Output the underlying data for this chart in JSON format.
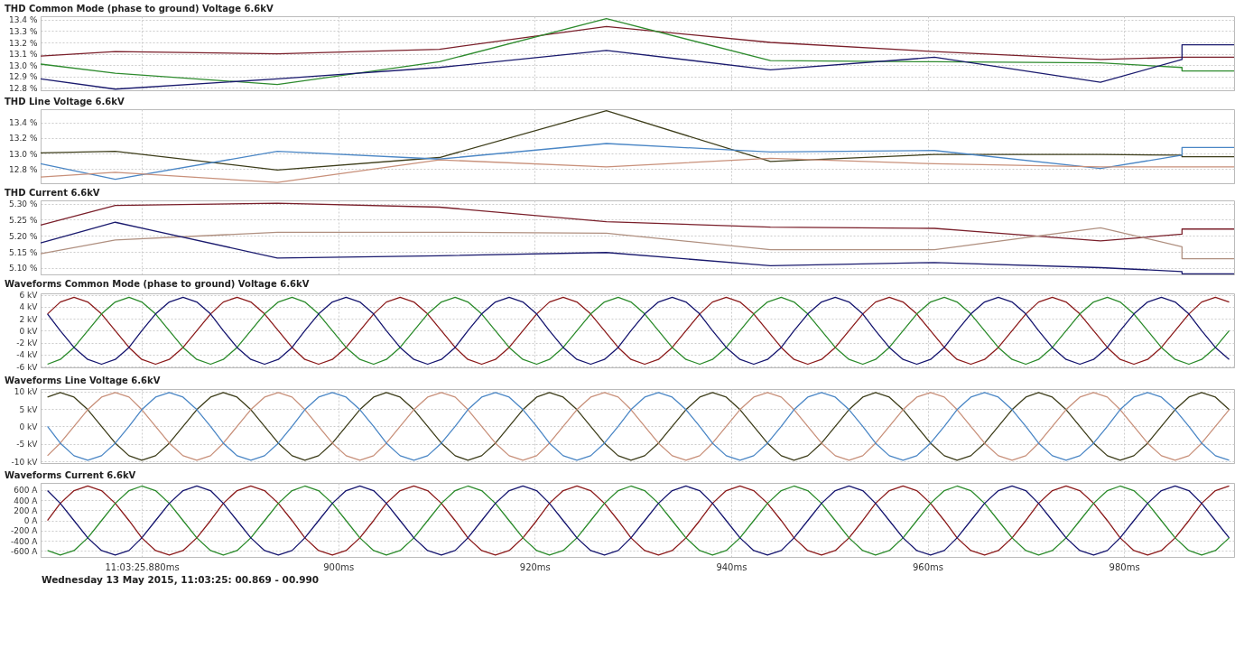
{
  "chart_data": [
    {
      "type": "line",
      "title": "THD Common Mode (phase to ground) Voltage 6.6kV",
      "x": [
        869.7,
        877.3,
        893.8,
        910.3,
        927.3,
        944.0,
        960.7,
        977.6,
        985.9,
        985.9,
        991.2
      ],
      "xlim": [
        869.7,
        991.2
      ],
      "xticks": [
        880,
        900,
        920,
        940,
        960,
        980
      ],
      "ylim": [
        12.78,
        13.43
      ],
      "yticks": [
        {
          "value": 12.8,
          "label": "12.8 %"
        },
        {
          "value": 12.9,
          "label": "12.9 %"
        },
        {
          "value": 13.0,
          "label": "13.0 %"
        },
        {
          "value": 13.1,
          "label": "13.1 %"
        },
        {
          "value": 13.2,
          "label": "13.2 %"
        },
        {
          "value": 13.3,
          "label": "13.3 %"
        },
        {
          "value": 13.4,
          "label": "13.4 %"
        }
      ],
      "grid": true,
      "tick_labels": "y",
      "series": [
        {
          "color": "#7a1f2a",
          "values": [
            13.08,
            13.12,
            13.1,
            13.14,
            13.34,
            13.2,
            13.12,
            13.05,
            13.07,
            13.07,
            13.07
          ]
        },
        {
          "color": "#2e8b2e",
          "values": [
            13.01,
            12.93,
            12.83,
            13.03,
            13.41,
            13.04,
            13.03,
            13.02,
            12.98,
            12.95,
            12.95
          ]
        },
        {
          "color": "#1a1a6e",
          "values": [
            12.88,
            12.79,
            12.88,
            12.98,
            13.13,
            12.96,
            13.07,
            12.85,
            13.05,
            13.18,
            13.18
          ]
        }
      ]
    },
    {
      "type": "line",
      "title": "THD Line Voltage 6.6kV",
      "x": [
        869.7,
        877.3,
        893.8,
        910.3,
        927.3,
        944.0,
        960.7,
        977.6,
        985.9,
        985.9,
        991.2
      ],
      "xlim": [
        869.7,
        991.2
      ],
      "xticks": [
        880,
        900,
        920,
        940,
        960,
        980
      ],
      "ylim": [
        12.62,
        13.57
      ],
      "yticks": [
        {
          "value": 12.8,
          "label": "12.8 %"
        },
        {
          "value": 13.0,
          "label": "13.0 %"
        },
        {
          "value": 13.2,
          "label": "13.2 %"
        },
        {
          "value": 13.4,
          "label": "13.4 %"
        }
      ],
      "grid": true,
      "tick_labels": "y",
      "series": [
        {
          "color": "#3d3d1a",
          "values": [
            13.01,
            13.03,
            12.79,
            12.95,
            13.55,
            12.9,
            12.99,
            12.99,
            12.98,
            12.96,
            12.96
          ]
        },
        {
          "color": "#4a86c5",
          "values": [
            12.87,
            12.67,
            13.03,
            12.93,
            13.13,
            13.02,
            13.04,
            12.81,
            12.98,
            13.08,
            13.08
          ]
        },
        {
          "color": "#c8907a",
          "values": [
            12.7,
            12.76,
            12.63,
            12.92,
            12.83,
            12.94,
            12.87,
            12.83,
            12.83,
            12.83,
            12.83
          ]
        }
      ]
    },
    {
      "type": "line",
      "title": "THD Current 6.6kV",
      "x": [
        869.7,
        877.3,
        893.8,
        910.3,
        927.3,
        944.0,
        960.7,
        977.6,
        985.9,
        985.9,
        991.2
      ],
      "xlim": [
        869.7,
        991.2
      ],
      "xticks": [
        880,
        900,
        920,
        940,
        960,
        980
      ],
      "ylim": [
        5.08,
        5.31
      ],
      "yticks": [
        {
          "value": 5.1,
          "label": "5.10 %"
        },
        {
          "value": 5.15,
          "label": "5.15 %"
        },
        {
          "value": 5.2,
          "label": "5.20 %"
        },
        {
          "value": 5.25,
          "label": "5.25 %"
        },
        {
          "value": 5.3,
          "label": "5.30 %"
        }
      ],
      "grid": true,
      "tick_labels": "y",
      "series": [
        {
          "color": "#7a1f2a",
          "values": [
            5.233,
            5.294,
            5.301,
            5.289,
            5.244,
            5.227,
            5.223,
            5.184,
            5.205,
            5.221,
            5.221
          ]
        },
        {
          "color": "#b09080",
          "values": [
            5.144,
            5.187,
            5.211,
            5.211,
            5.208,
            5.157,
            5.157,
            5.225,
            5.166,
            5.129,
            5.129
          ]
        },
        {
          "color": "#1a1a6e",
          "values": [
            5.178,
            5.242,
            5.131,
            5.138,
            5.148,
            5.107,
            5.117,
            5.101,
            5.089,
            5.082,
            5.082
          ]
        }
      ]
    },
    {
      "type": "line",
      "title": "Waveforms Common Mode (phase to ground) Voltage 6.6kV",
      "x": [
        870.4,
        871.7,
        873.1,
        874.5,
        875.9,
        877.3,
        878.7,
        880.0,
        881.4,
        882.8,
        884.2,
        885.6,
        887.0,
        888.3,
        889.7,
        891.1,
        892.5,
        893.9,
        895.3,
        896.6,
        898.0,
        899.4,
        900.8,
        902.2,
        903.6,
        904.9,
        906.3,
        907.7,
        909.1,
        910.5,
        911.9,
        913.2,
        914.6,
        916.0,
        917.4,
        918.8,
        920.2,
        921.5,
        922.9,
        924.3,
        925.7,
        927.1,
        928.5,
        929.8,
        931.2,
        932.6,
        934.0,
        935.4,
        936.8,
        938.1,
        939.5,
        940.9,
        942.3,
        943.7,
        945.1,
        946.4,
        947.8,
        949.2,
        950.6,
        952.0,
        953.4,
        954.7,
        956.1,
        957.5,
        958.9,
        960.3,
        961.7,
        963.0,
        964.4,
        965.8,
        967.2,
        968.6,
        970.0,
        971.3,
        972.7,
        974.1,
        975.5,
        976.9,
        978.3,
        979.6,
        981.0,
        982.4,
        983.8,
        985.2,
        986.6,
        987.9,
        989.3,
        990.7
      ],
      "xlim": [
        869.7,
        991.2
      ],
      "xticks": [
        880,
        900,
        920,
        940,
        960,
        980
      ],
      "ylim": [
        -6.13,
        6.25
      ],
      "yticks": [
        {
          "value": -6,
          "label": "-6 kV"
        },
        {
          "value": -4,
          "label": "-4 kV"
        },
        {
          "value": -2,
          "label": "-2 kV"
        },
        {
          "value": 0,
          "label": "0 kV"
        },
        {
          "value": 2,
          "label": "2 kV"
        },
        {
          "value": 4,
          "label": "4 kV"
        },
        {
          "value": 6,
          "label": "6 kV"
        }
      ],
      "grid": true,
      "tick_labels": "y",
      "series": [
        {
          "color": "#8b1a1a",
          "values": [
            2.8,
            4.8,
            5.6,
            4.8,
            2.8,
            0,
            -2.8,
            -4.8,
            -5.6,
            -4.8,
            -2.8,
            0,
            2.8,
            4.8,
            5.6,
            4.8,
            2.8,
            0,
            -2.8,
            -4.8,
            -5.6,
            -4.8,
            -2.8,
            0,
            2.8,
            4.8,
            5.6,
            4.8,
            2.8,
            0,
            -2.8,
            -4.8,
            -5.6,
            -4.8,
            -2.8,
            0,
            2.8,
            4.8,
            5.6,
            4.8,
            2.8,
            0,
            -2.8,
            -4.8,
            -5.6,
            -4.8,
            -2.8,
            0,
            2.8,
            4.8,
            5.6,
            4.8,
            2.8,
            0,
            -2.8,
            -4.8,
            -5.6,
            -4.8,
            -2.8,
            0,
            2.8,
            4.8,
            5.6,
            4.8,
            2.8,
            0,
            -2.8,
            -4.8,
            -5.6,
            -4.8,
            -2.8,
            0,
            2.8,
            4.8,
            5.6,
            4.8,
            2.8,
            0,
            -2.8,
            -4.8,
            -5.6,
            -4.8,
            -2.8,
            0,
            2.8,
            4.8,
            5.6,
            4.8
          ]
        },
        {
          "color": "#2a8a2a",
          "values": [
            -5.6,
            -4.8,
            -2.8,
            0,
            2.8,
            4.8,
            5.6,
            4.8,
            2.8,
            0,
            -2.8,
            -4.8,
            -5.6,
            -4.8,
            -2.8,
            0,
            2.8,
            4.8,
            5.6,
            4.8,
            2.8,
            0,
            -2.8,
            -4.8,
            -5.6,
            -4.8,
            -2.8,
            0,
            2.8,
            4.8,
            5.6,
            4.8,
            2.8,
            0,
            -2.8,
            -4.8,
            -5.6,
            -4.8,
            -2.8,
            0,
            2.8,
            4.8,
            5.6,
            4.8,
            2.8,
            0,
            -2.8,
            -4.8,
            -5.6,
            -4.8,
            -2.8,
            0,
            2.8,
            4.8,
            5.6,
            4.8,
            2.8,
            0,
            -2.8,
            -4.8,
            -5.6,
            -4.8,
            -2.8,
            0,
            2.8,
            4.8,
            5.6,
            4.8,
            2.8,
            0,
            -2.8,
            -4.8,
            -5.6,
            -4.8,
            -2.8,
            0,
            2.8,
            4.8,
            5.6,
            4.8,
            2.8,
            0,
            -2.8,
            -4.8,
            -5.6,
            -4.8,
            -2.8,
            0
          ]
        },
        {
          "color": "#14146e",
          "values": [
            2.8,
            0,
            -2.8,
            -4.8,
            -5.6,
            -4.8,
            -2.8,
            0,
            2.8,
            4.8,
            5.6,
            4.8,
            2.8,
            0,
            -2.8,
            -4.8,
            -5.6,
            -4.8,
            -2.8,
            0,
            2.8,
            4.8,
            5.6,
            4.8,
            2.8,
            0,
            -2.8,
            -4.8,
            -5.6,
            -4.8,
            -2.8,
            0,
            2.8,
            4.8,
            5.6,
            4.8,
            2.8,
            0,
            -2.8,
            -4.8,
            -5.6,
            -4.8,
            -2.8,
            0,
            2.8,
            4.8,
            5.6,
            4.8,
            2.8,
            0,
            -2.8,
            -4.8,
            -5.6,
            -4.8,
            -2.8,
            0,
            2.8,
            4.8,
            5.6,
            4.8,
            2.8,
            0,
            -2.8,
            -4.8,
            -5.6,
            -4.8,
            -2.8,
            0,
            2.8,
            4.8,
            5.6,
            4.8,
            2.8,
            0,
            -2.8,
            -4.8,
            -5.6,
            -4.8,
            -2.8,
            0,
            2.8,
            4.8,
            5.6,
            4.8,
            2.8,
            0,
            -2.8,
            -4.8
          ]
        }
      ]
    },
    {
      "type": "line",
      "title": "Waveforms Line Voltage 6.6kV",
      "x": [
        870.4,
        871.7,
        873.1,
        874.5,
        875.9,
        877.3,
        878.7,
        880.0,
        881.4,
        882.8,
        884.2,
        885.6,
        887.0,
        888.3,
        889.7,
        891.1,
        892.5,
        893.9,
        895.3,
        896.6,
        898.0,
        899.4,
        900.8,
        902.2,
        903.6,
        904.9,
        906.3,
        907.7,
        909.1,
        910.5,
        911.9,
        913.2,
        914.6,
        916.0,
        917.4,
        918.8,
        920.2,
        921.5,
        922.9,
        924.3,
        925.7,
        927.1,
        928.5,
        929.8,
        931.2,
        932.6,
        934.0,
        935.4,
        936.8,
        938.1,
        939.5,
        940.9,
        942.3,
        943.7,
        945.1,
        946.4,
        947.8,
        949.2,
        950.6,
        952.0,
        953.4,
        954.7,
        956.1,
        957.5,
        958.9,
        960.3,
        961.7,
        963.0,
        964.4,
        965.8,
        967.2,
        968.6,
        970.0,
        971.3,
        972.7,
        974.1,
        975.5,
        976.9,
        978.3,
        979.6,
        981.0,
        982.4,
        983.8,
        985.2,
        986.6,
        987.9,
        989.3,
        990.7
      ],
      "xlim": [
        869.7,
        991.2
      ],
      "xticks": [
        880,
        900,
        920,
        940,
        960,
        980
      ],
      "ylim": [
        -10.5,
        10.7
      ],
      "yticks": [
        {
          "value": -10,
          "label": "-10 kV"
        },
        {
          "value": -5,
          "label": "-5 kV"
        },
        {
          "value": 0,
          "label": "0 kV"
        },
        {
          "value": 5,
          "label": "5 kV"
        },
        {
          "value": 10,
          "label": "10 kV"
        }
      ],
      "grid": true,
      "tick_labels": "y",
      "series": [
        {
          "color": "#3d3d1a",
          "values": [
            8.4,
            9.7,
            8.4,
            4.8,
            0,
            -4.8,
            -8.4,
            -9.7,
            -8.4,
            -4.8,
            0,
            4.8,
            8.4,
            9.7,
            8.4,
            4.8,
            0,
            -4.8,
            -8.4,
            -9.7,
            -8.4,
            -4.8,
            0,
            4.8,
            8.4,
            9.7,
            8.4,
            4.8,
            0,
            -4.8,
            -8.4,
            -9.7,
            -8.4,
            -4.8,
            0,
            4.8,
            8.4,
            9.7,
            8.4,
            4.8,
            0,
            -4.8,
            -8.4,
            -9.7,
            -8.4,
            -4.8,
            0,
            4.8,
            8.4,
            9.7,
            8.4,
            4.8,
            0,
            -4.8,
            -8.4,
            -9.7,
            -8.4,
            -4.8,
            0,
            4.8,
            8.4,
            9.7,
            8.4,
            4.8,
            0,
            -4.8,
            -8.4,
            -9.7,
            -8.4,
            -4.8,
            0,
            4.8,
            8.4,
            9.7,
            8.4,
            4.8,
            0,
            -4.8,
            -8.4,
            -9.7,
            -8.4,
            -4.8,
            0,
            4.8,
            8.4,
            9.7,
            8.4,
            4.8
          ]
        },
        {
          "color": "#c8907a",
          "values": [
            -8.4,
            -4.8,
            0,
            4.8,
            8.4,
            9.7,
            8.4,
            4.8,
            0,
            -4.8,
            -8.4,
            -9.7,
            -8.4,
            -4.8,
            0,
            4.8,
            8.4,
            9.7,
            8.4,
            4.8,
            0,
            -4.8,
            -8.4,
            -9.7,
            -8.4,
            -4.8,
            0,
            4.8,
            8.4,
            9.7,
            8.4,
            4.8,
            0,
            -4.8,
            -8.4,
            -9.7,
            -8.4,
            -4.8,
            0,
            4.8,
            8.4,
            9.7,
            8.4,
            4.8,
            0,
            -4.8,
            -8.4,
            -9.7,
            -8.4,
            -4.8,
            0,
            4.8,
            8.4,
            9.7,
            8.4,
            4.8,
            0,
            -4.8,
            -8.4,
            -9.7,
            -8.4,
            -4.8,
            0,
            4.8,
            8.4,
            9.7,
            8.4,
            4.8,
            0,
            -4.8,
            -8.4,
            -9.7,
            -8.4,
            -4.8,
            0,
            4.8,
            8.4,
            9.7,
            8.4,
            4.8,
            0,
            -4.8,
            -8.4,
            -9.7,
            -8.4,
            -4.8,
            0,
            4.8
          ]
        },
        {
          "color": "#4a86c5",
          "values": [
            0,
            -4.8,
            -8.4,
            -9.7,
            -8.4,
            -4.8,
            0,
            4.8,
            8.4,
            9.7,
            8.4,
            4.8,
            0,
            -4.8,
            -8.4,
            -9.7,
            -8.4,
            -4.8,
            0,
            4.8,
            8.4,
            9.7,
            8.4,
            4.8,
            0,
            -4.8,
            -8.4,
            -9.7,
            -8.4,
            -4.8,
            0,
            4.8,
            8.4,
            9.7,
            8.4,
            4.8,
            0,
            -4.8,
            -8.4,
            -9.7,
            -8.4,
            -4.8,
            0,
            4.8,
            8.4,
            9.7,
            8.4,
            4.8,
            0,
            -4.8,
            -8.4,
            -9.7,
            -8.4,
            -4.8,
            0,
            4.8,
            8.4,
            9.7,
            8.4,
            4.8,
            0,
            -4.8,
            -8.4,
            -9.7,
            -8.4,
            -4.8,
            0,
            4.8,
            8.4,
            9.7,
            8.4,
            4.8,
            0,
            -4.8,
            -8.4,
            -9.7,
            -8.4,
            -4.8,
            0,
            4.8,
            8.4,
            9.7,
            8.4,
            4.8,
            0,
            -4.8,
            -8.4,
            -9.7
          ]
        }
      ]
    },
    {
      "type": "line",
      "title": "Waveforms Current 6.6kV",
      "annotations": [
        "Wednesday 13 May 2015, 11:03:25: 00.869 - 00.990"
      ],
      "x": [
        870.4,
        871.7,
        873.1,
        874.5,
        875.9,
        877.3,
        878.7,
        880.0,
        881.4,
        882.8,
        884.2,
        885.6,
        887.0,
        888.3,
        889.7,
        891.1,
        892.5,
        893.9,
        895.3,
        896.6,
        898.0,
        899.4,
        900.8,
        902.2,
        903.6,
        904.9,
        906.3,
        907.7,
        909.1,
        910.5,
        911.9,
        913.2,
        914.6,
        916.0,
        917.4,
        918.8,
        920.2,
        921.5,
        922.9,
        924.3,
        925.7,
        927.1,
        928.5,
        929.8,
        931.2,
        932.6,
        934.0,
        935.4,
        936.8,
        938.1,
        939.5,
        940.9,
        942.3,
        943.7,
        945.1,
        946.4,
        947.8,
        949.2,
        950.6,
        952.0,
        953.4,
        954.7,
        956.1,
        957.5,
        958.9,
        960.3,
        961.7,
        963.0,
        964.4,
        965.8,
        967.2,
        968.6,
        970.0,
        971.3,
        972.7,
        974.1,
        975.5,
        976.9,
        978.3,
        979.6,
        981.0,
        982.4,
        983.8,
        985.2,
        986.6,
        987.9,
        989.3,
        990.7
      ],
      "xlim": [
        869.7,
        991.2
      ],
      "xticks": [
        {
          "value": 880,
          "label": "11:03:25.880ms"
        },
        {
          "value": 900,
          "label": "900ms"
        },
        {
          "value": 920,
          "label": "920ms"
        },
        {
          "value": 940,
          "label": "940ms"
        },
        {
          "value": 960,
          "label": "960ms"
        },
        {
          "value": 980,
          "label": "980ms"
        }
      ],
      "ylim": [
        -716,
        742
      ],
      "yticks": [
        {
          "value": -600,
          "label": "-600 A"
        },
        {
          "value": -400,
          "label": "-400 A"
        },
        {
          "value": -200,
          "label": "-200 A"
        },
        {
          "value": 0,
          "label": "0 A"
        },
        {
          "value": 200,
          "label": "200 A"
        },
        {
          "value": 400,
          "label": "400 A"
        },
        {
          "value": 600,
          "label": "600 A"
        }
      ],
      "grid": true,
      "series": [
        {
          "color": "#8b1a1a",
          "values": [
            0,
            340,
            590,
            680,
            590,
            340,
            0,
            -340,
            -590,
            -680,
            -590,
            -340,
            0,
            340,
            590,
            680,
            590,
            340,
            0,
            -340,
            -590,
            -680,
            -590,
            -340,
            0,
            340,
            590,
            680,
            590,
            340,
            0,
            -340,
            -590,
            -680,
            -590,
            -340,
            0,
            340,
            590,
            680,
            590,
            340,
            0,
            -340,
            -590,
            -680,
            -590,
            -340,
            0,
            340,
            590,
            680,
            590,
            340,
            0,
            -340,
            -590,
            -680,
            -590,
            -340,
            0,
            340,
            590,
            680,
            590,
            340,
            0,
            -340,
            -590,
            -680,
            -590,
            -340,
            0,
            340,
            590,
            680,
            590,
            340,
            0,
            -340,
            -590,
            -680,
            -590,
            -340,
            0,
            340,
            590,
            680
          ]
        },
        {
          "color": "#2a8a2a",
          "values": [
            -590,
            -680,
            -590,
            -340,
            0,
            340,
            590,
            680,
            590,
            340,
            0,
            -340,
            -590,
            -680,
            -590,
            -340,
            0,
            340,
            590,
            680,
            590,
            340,
            0,
            -340,
            -590,
            -680,
            -590,
            -340,
            0,
            340,
            590,
            680,
            590,
            340,
            0,
            -340,
            -590,
            -680,
            -590,
            -340,
            0,
            340,
            590,
            680,
            590,
            340,
            0,
            -340,
            -590,
            -680,
            -590,
            -340,
            0,
            340,
            590,
            680,
            590,
            340,
            0,
            -340,
            -590,
            -680,
            -590,
            -340,
            0,
            340,
            590,
            680,
            590,
            340,
            0,
            -340,
            -590,
            -680,
            -590,
            -340,
            0,
            340,
            590,
            680,
            590,
            340,
            0,
            -340,
            -590,
            -680,
            -590,
            -340
          ]
        },
        {
          "color": "#14146e",
          "values": [
            590,
            340,
            0,
            -340,
            -590,
            -680,
            -590,
            -340,
            0,
            340,
            590,
            680,
            590,
            340,
            0,
            -340,
            -590,
            -680,
            -590,
            -340,
            0,
            340,
            590,
            680,
            590,
            340,
            0,
            -340,
            -590,
            -680,
            -590,
            -340,
            0,
            340,
            590,
            680,
            590,
            340,
            0,
            -340,
            -590,
            -680,
            -590,
            -340,
            0,
            340,
            590,
            680,
            590,
            340,
            0,
            -340,
            -590,
            -680,
            -590,
            -340,
            0,
            340,
            590,
            680,
            590,
            340,
            0,
            -340,
            -590,
            -680,
            -590,
            -340,
            0,
            340,
            590,
            680,
            590,
            340,
            0,
            -340,
            -590,
            -680,
            -590,
            -340,
            0,
            340,
            590,
            680,
            590,
            340,
            0,
            -340
          ]
        }
      ]
    }
  ]
}
